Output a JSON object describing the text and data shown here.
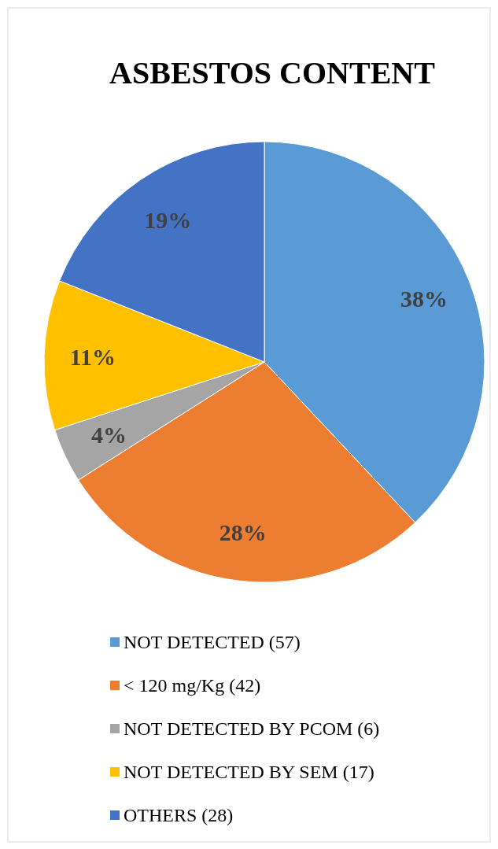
{
  "chart_data": {
    "type": "pie",
    "title": "ASBESTOS CONTENT",
    "categories": [
      "NOT DETECTED (57)",
      "< 120 mg/Kg (42)",
      "NOT DETECTED BY PCOM (6)",
      "NOT DETECTED BY SEM (17)",
      "OTHERS (28)"
    ],
    "values": [
      38,
      28,
      4,
      11,
      19
    ],
    "value_labels": [
      "38%",
      "28%",
      "4%",
      "11%",
      "19%"
    ],
    "colors": [
      "#5b9bd5",
      "#ed7d31",
      "#a5a5a5",
      "#ffc000",
      "#4472c4"
    ],
    "legend": "bottom"
  }
}
